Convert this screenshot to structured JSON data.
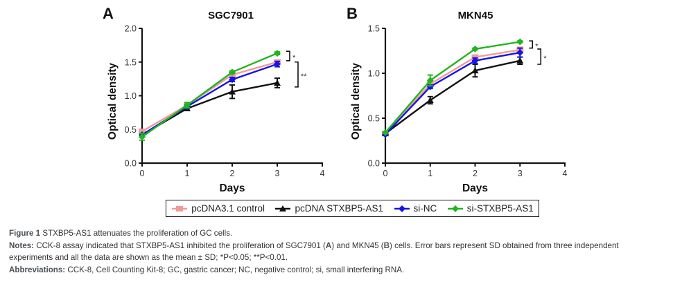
{
  "chart_data": [
    {
      "type": "line",
      "panel": "A",
      "title": "SGC7901",
      "xlabel": "Days",
      "ylabel": "Optical density",
      "x": [
        0,
        1,
        2,
        3
      ],
      "xlim": [
        0,
        4
      ],
      "ylim": [
        0,
        2.0
      ],
      "xticks": [
        "0",
        "1",
        "2",
        "3",
        "4"
      ],
      "yticks": [
        "0.0",
        "0.5",
        "1.0",
        "1.5",
        "2.0"
      ],
      "grid": false,
      "series": [
        {
          "name": "pcDNA3.1 control",
          "color": "#f29a9a",
          "marker": "square",
          "values": [
            0.47,
            0.86,
            1.31,
            1.5
          ],
          "error": [
            0.02,
            0.03,
            0.03,
            0.03
          ]
        },
        {
          "name": "pcDNA STXBP5-AS1",
          "color": "#111111",
          "marker": "triangle",
          "values": [
            0.42,
            0.81,
            1.06,
            1.19
          ],
          "error": [
            0.02,
            0.03,
            0.1,
            0.07
          ]
        },
        {
          "name": "si-NC",
          "color": "#1414e6",
          "marker": "diamond",
          "values": [
            0.42,
            0.84,
            1.24,
            1.47
          ],
          "error": [
            0.02,
            0.03,
            0.03,
            0.04
          ]
        },
        {
          "name": "si-STXBP5-AS1",
          "color": "#1fb51f",
          "marker": "diamond",
          "values": [
            0.39,
            0.86,
            1.35,
            1.63
          ],
          "error": [
            0.05,
            0.04,
            0.02,
            0.02
          ]
        }
      ],
      "annotations": [
        {
          "text": "*",
          "between": [
            "si-STXBP5-AS1",
            "si-NC"
          ],
          "at_x": 3,
          "range": [
            1.52,
            1.66
          ]
        },
        {
          "text": "**",
          "between": [
            "pcDNA3.1 control",
            "pcDNA STXBP5-AS1"
          ],
          "at_x": 3,
          "range": [
            1.13,
            1.5
          ]
        }
      ]
    },
    {
      "type": "line",
      "panel": "B",
      "title": "MKN45",
      "xlabel": "Days",
      "ylabel": "Optical density",
      "x": [
        0,
        1,
        2,
        3
      ],
      "xlim": [
        0,
        4
      ],
      "ylim": [
        0,
        1.5
      ],
      "xticks": [
        "0",
        "1",
        "2",
        "3",
        "4"
      ],
      "yticks": [
        "0.0",
        "0.5",
        "1.0",
        "1.5"
      ],
      "grid": false,
      "series": [
        {
          "name": "pcDNA3.1 control",
          "color": "#f29a9a",
          "marker": "square",
          "values": [
            0.33,
            0.88,
            1.18,
            1.26
          ],
          "error": [
            0.01,
            0.02,
            0.02,
            0.03
          ]
        },
        {
          "name": "pcDNA STXBP5-AS1",
          "color": "#111111",
          "marker": "triangle",
          "values": [
            0.33,
            0.7,
            1.03,
            1.14
          ],
          "error": [
            0.01,
            0.04,
            0.07,
            0.04
          ]
        },
        {
          "name": "si-NC",
          "color": "#1414e6",
          "marker": "diamond",
          "values": [
            0.32,
            0.85,
            1.14,
            1.23
          ],
          "error": [
            0.01,
            0.02,
            0.03,
            0.05
          ]
        },
        {
          "name": "si-STXBP5-AS1",
          "color": "#1fb51f",
          "marker": "diamond",
          "values": [
            0.34,
            0.92,
            1.27,
            1.35
          ],
          "error": [
            0.01,
            0.06,
            0.01,
            0.01
          ]
        }
      ],
      "annotations": [
        {
          "text": "*",
          "between": [
            "si-STXBP5-AS1",
            "si-NC"
          ],
          "at_x": 3,
          "range": [
            1.28,
            1.36
          ]
        },
        {
          "text": "*",
          "between": [
            "pcDNA3.1 control",
            "pcDNA STXBP5-AS1"
          ],
          "at_x": 3,
          "range": [
            1.1,
            1.27
          ]
        }
      ]
    }
  ],
  "legend": {
    "items": [
      {
        "label": "pcDNA3.1 control",
        "color": "#f29a9a",
        "marker": "square"
      },
      {
        "label": "pcDNA STXBP5-AS1",
        "color": "#111111",
        "marker": "triangle"
      },
      {
        "label": "si-NC",
        "color": "#1414e6",
        "marker": "diamond"
      },
      {
        "label": "si-STXBP5-AS1",
        "color": "#1fb51f",
        "marker": "diamond"
      }
    ]
  },
  "caption": {
    "figure_label": "Figure 1",
    "figure_text": " STXBP5-AS1 attenuates the proliferation of GC cells.",
    "notes_label": "Notes:",
    "notes_part1": " CCK-8 assay indicated that STXBP5-AS1 inhibited the proliferation of SGC7901 (",
    "notes_a": "A",
    "notes_part2": ") and MKN45 (",
    "notes_b": "B",
    "notes_part3": ") cells. Error bars represent SD obtained from three independent",
    "notes_line2": "experiments and all the data are shown as the mean ± SD; *P<0.05; **P<0.01.",
    "abbrev_label": "Abbreviations:",
    "abbrev_text": " CCK-8, Cell Counting Kit-8; GC, gastric cancer; NC, negative control; si, small interfering RNA."
  }
}
